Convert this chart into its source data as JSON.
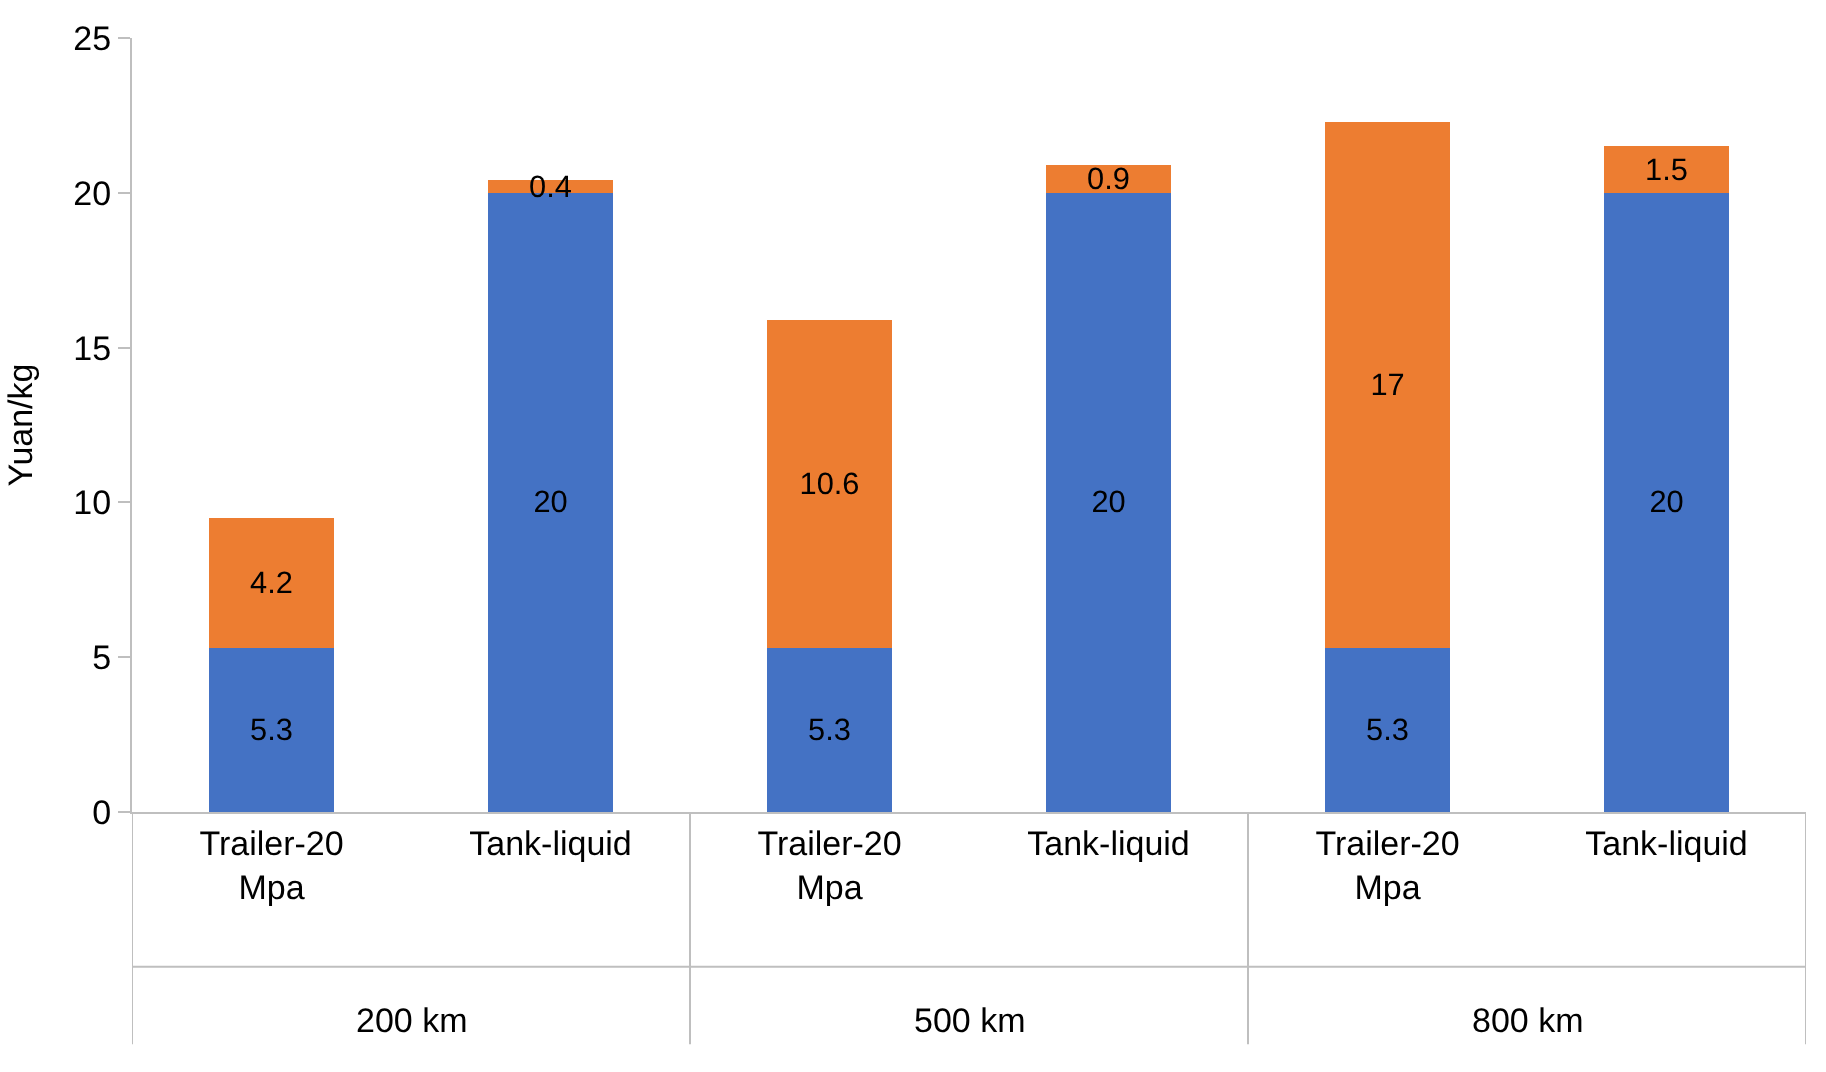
{
  "chart_data": {
    "type": "bar",
    "stacked": true,
    "ylabel": "Yuan/kg",
    "categories": [
      "Trailer-20 Mpa",
      "Tank-liquid",
      "Trailer-20 Mpa",
      "Tank-liquid",
      "Trailer-20 Mpa",
      "Tank-liquid"
    ],
    "series": [
      {
        "color": "#4472c4",
        "values": [
          5.3,
          20,
          5.3,
          20,
          5.3,
          20
        ]
      },
      {
        "color": "#ed7d31",
        "values": [
          4.2,
          0.4,
          10.6,
          0.9,
          17,
          1.5
        ]
      }
    ],
    "annotations": [
      "200 km",
      "500 km",
      "800 km"
    ],
    "ylim": [
      0,
      25
    ],
    "yticks": [
      0,
      5,
      10,
      15,
      20,
      25
    ],
    "legend": false,
    "data_labels": true
  }
}
